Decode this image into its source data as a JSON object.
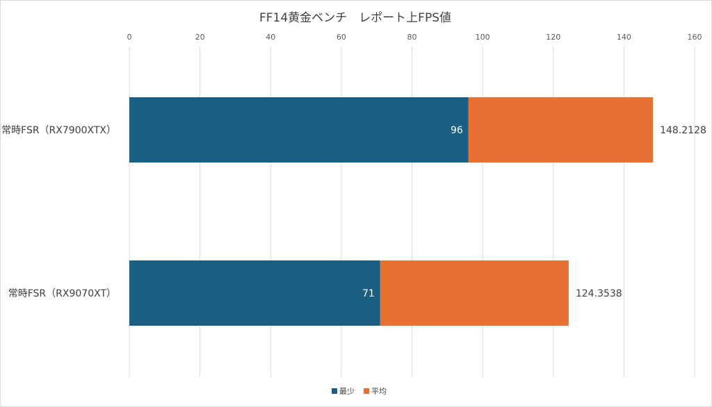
{
  "chart_data": {
    "type": "bar",
    "stacked": true,
    "orientation": "horizontal",
    "title": "FF14黄金ベンチ　レポート上FPS値",
    "categories": [
      "常時FSR（RX7900XTX）",
      "常時FSR（RX9070XT）"
    ],
    "series": [
      {
        "name": "最少",
        "values": [
          96,
          71
        ],
        "color": "#1a5f82",
        "labels": [
          "96",
          "71"
        ]
      },
      {
        "name": "平均",
        "values": [
          148.2128,
          124.3538
        ],
        "color": "#e77133",
        "labels": [
          "148.2128",
          "124.3538"
        ]
      }
    ],
    "axis": {
      "position": "top",
      "range": [
        0,
        160
      ],
      "ticks": [
        "0",
        "20",
        "40",
        "60",
        "80",
        "100",
        "120",
        "140",
        "160"
      ],
      "grid": true
    },
    "legend": "bottom"
  }
}
